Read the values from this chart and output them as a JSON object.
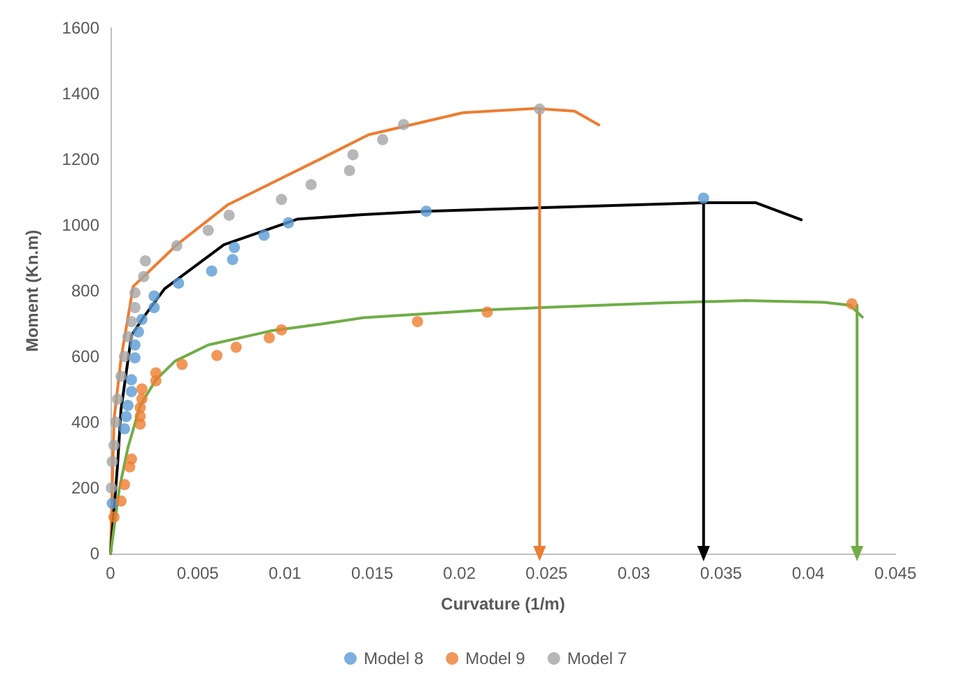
{
  "chart_data": {
    "type": "scatter",
    "xlabel": "Curvature (1/m)",
    "ylabel": "Moment (Kn.m)",
    "xlim": [
      0,
      0.045
    ],
    "xticks": [
      0,
      0.005,
      0.01,
      0.015,
      0.02,
      0.025,
      0.03,
      0.035,
      0.04,
      0.045
    ],
    "ylim": [
      0,
      1600
    ],
    "yticks": [
      0,
      200,
      400,
      600,
      800,
      1000,
      1200,
      1400,
      1600
    ],
    "grid": false,
    "legend": "bottom",
    "marker": "circle",
    "series": [
      {
        "name": "Model 8",
        "color": "#5b9bd5",
        "x": [
          0.0001,
          0.0008,
          0.0009,
          0.001,
          0.0012,
          0.0012,
          0.0014,
          0.0014,
          0.0016,
          0.0018,
          0.0025,
          0.0025,
          0.0039,
          0.0058,
          0.007,
          0.0071,
          0.0088,
          0.0102,
          0.0181,
          0.034
        ],
        "values": [
          153,
          380,
          417,
          451,
          493,
          529,
          596,
          635,
          675,
          713,
          749,
          784,
          823,
          860,
          895,
          932,
          969,
          1007,
          1042,
          1082
        ]
      },
      {
        "name": "Model 9",
        "color": "#ed7d31",
        "x": [
          0.0002,
          0.0006,
          0.0008,
          0.0011,
          0.0012,
          0.0017,
          0.0017,
          0.0017,
          0.0018,
          0.0018,
          0.0026,
          0.0026,
          0.0041,
          0.0061,
          0.0072,
          0.0091,
          0.0098,
          0.0176,
          0.0216,
          0.0425
        ],
        "values": [
          111,
          160,
          210,
          264,
          288,
          394,
          418,
          444,
          471,
          501,
          526,
          550,
          576,
          603,
          628,
          657,
          681,
          706,
          735,
          760
        ]
      },
      {
        "name": "Model 7",
        "color": "#a5a5a5",
        "x": [
          5e-05,
          0.0001,
          0.0002,
          0.0003,
          0.0004,
          0.0006,
          0.0008,
          0.001,
          0.0012,
          0.0014,
          0.0014,
          0.0019,
          0.002,
          0.0038,
          0.0056,
          0.0068,
          0.0098,
          0.0115,
          0.0137,
          0.0139,
          0.0156,
          0.0168,
          0.0246
        ],
        "values": [
          200,
          280,
          330,
          400,
          470,
          540,
          600,
          660,
          706,
          749,
          794,
          843,
          891,
          937,
          984,
          1030,
          1078,
          1123,
          1166,
          1214,
          1260,
          1306,
          1353
        ]
      },
      {
        "type": "line",
        "marker": "none",
        "color": "#ed7d31",
        "x": [
          0,
          0.0002,
          0.0006,
          0.0013,
          0.0038,
          0.0067,
          0.0121,
          0.0148,
          0.0202,
          0.0244,
          0.0266,
          0.028
        ],
        "values": [
          0,
          408,
          593,
          813,
          940,
          1061,
          1203,
          1275,
          1342,
          1355,
          1347,
          1305
        ]
      },
      {
        "type": "line",
        "marker": "none",
        "color": "#000000",
        "x": [
          0,
          0.0004,
          0.0006,
          0.0012,
          0.0019,
          0.0031,
          0.0065,
          0.0107,
          0.0145,
          0.0181,
          0.0298,
          0.0341,
          0.037,
          0.0396
        ],
        "values": [
          0,
          268,
          438,
          664,
          720,
          806,
          940,
          1018,
          1032,
          1042,
          1061,
          1068,
          1068,
          1016
        ]
      },
      {
        "type": "line",
        "marker": "none",
        "color": "#70ad47",
        "x": [
          0,
          0.0005,
          0.001,
          0.0017,
          0.0026,
          0.0037,
          0.0056,
          0.0092,
          0.0121,
          0.0145,
          0.0216,
          0.0314,
          0.0364,
          0.0409,
          0.0424,
          0.0431
        ],
        "values": [
          0,
          196,
          323,
          451,
          529,
          586,
          635,
          678,
          699,
          718,
          742,
          763,
          770,
          765,
          756,
          720
        ]
      },
      {
        "type": "line",
        "marker": "triangle",
        "color": "#ed7d31",
        "x": [
          0.0246,
          0.0246
        ],
        "values": [
          1355,
          0
        ]
      },
      {
        "type": "line",
        "marker": "triangle",
        "color": "#000000",
        "x": [
          0.034,
          0.034
        ],
        "values": [
          1068,
          0
        ]
      },
      {
        "type": "line",
        "marker": "triangle",
        "color": "#70ad47",
        "x": [
          0.0428,
          0.0428
        ],
        "values": [
          756,
          0
        ]
      }
    ]
  }
}
